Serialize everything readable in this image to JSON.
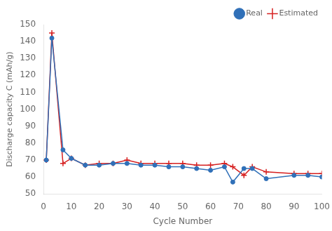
{
  "chart_data": {
    "type": "line",
    "x": [
      1,
      3,
      7,
      10,
      15,
      20,
      25,
      30,
      35,
      40,
      45,
      50,
      55,
      60,
      65,
      68,
      72,
      75,
      80,
      90,
      95,
      100
    ],
    "series": [
      {
        "name": "Real",
        "color": "#3070b8",
        "marker": "circle",
        "line_style": "solid",
        "values": [
          70,
          142,
          76,
          71,
          67,
          67,
          68,
          68,
          67,
          67,
          66,
          66,
          65,
          64,
          66,
          57,
          65,
          65,
          59,
          61,
          61,
          60
        ]
      },
      {
        "name": "Estimated",
        "color": "#d62020",
        "marker": "plus",
        "line_style": "solid",
        "values": [
          70,
          145,
          68,
          71,
          67,
          68,
          68,
          70,
          68,
          68,
          68,
          68,
          67,
          67,
          68,
          66,
          61,
          66,
          63,
          62,
          62,
          62
        ]
      }
    ],
    "xlabel": "Cycle Number",
    "ylabel": "Discharge capacity C (mAh/g)",
    "xlim": [
      0,
      100
    ],
    "ylim": [
      50,
      150
    ],
    "xticks": [
      0,
      10,
      20,
      30,
      40,
      50,
      60,
      70,
      80,
      90,
      100
    ],
    "yticks": [
      50,
      60,
      70,
      80,
      90,
      100,
      110,
      120,
      130,
      140,
      150
    ],
    "grid": false,
    "legend": "upper right"
  }
}
